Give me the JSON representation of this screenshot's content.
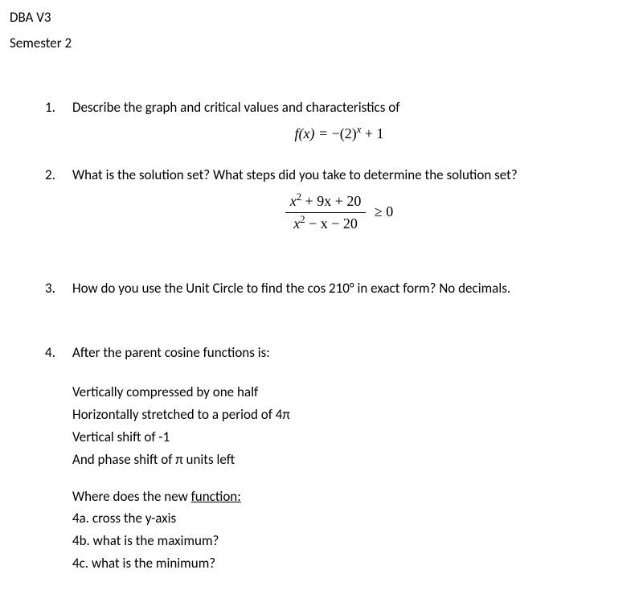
{
  "header": {
    "title": "DBA V3",
    "subtitle": "Semester 2"
  },
  "q1": {
    "num": "1.",
    "text": "Describe the graph and critical values and characteristics of",
    "eq_lhs": "f(x) = ",
    "eq_rhs": "−(2)",
    "eq_exp": "x",
    "eq_tail": " + 1"
  },
  "q2": {
    "num": "2.",
    "text": "What is the solution set?  What steps did you take to determine the solution set?",
    "frac_num_a": "x",
    "frac_num_aexp": "2",
    "frac_num_b": " + 9x + 20",
    "frac_den_a": "x",
    "frac_den_aexp": "2",
    "frac_den_b": " − x − 20",
    "rel": "≥ 0"
  },
  "q3": {
    "num": "3.",
    "text": "How do you use the Unit Circle to find the cos 210° in exact form?  No decimals."
  },
  "q4": {
    "num": "4.",
    "intro": "After the parent cosine functions is:",
    "t1": "Vertically compressed by one half",
    "t2": "Horizontally stretched to a period of 4π",
    "t3": "Vertical shift of -1",
    "t4": "And phase shift of π units left",
    "where_pre": "Where does the new ",
    "where_underlined": "function:",
    "a": "4a. cross the y-axis",
    "b": "4b. what is the maximum?",
    "c": "4c. what is the minimum?"
  }
}
